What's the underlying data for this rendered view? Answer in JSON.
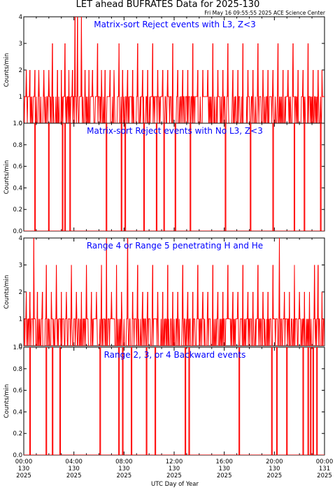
{
  "title": "LET ahead BUFRATES Data for 2025-130",
  "timestamp": "Fri May 16 09:55:55 2025 ACE Science Center",
  "xlabel": "UTC Day of Year",
  "x_ticks": [
    {
      "time": "00:00",
      "doy": "130",
      "year": "2025"
    },
    {
      "time": "04:00",
      "doy": "130",
      "year": "2025"
    },
    {
      "time": "08:00",
      "doy": "130",
      "year": "2025"
    },
    {
      "time": "12:00",
      "doy": "130",
      "year": "2025"
    },
    {
      "time": "16:00",
      "doy": "130",
      "year": "2025"
    },
    {
      "time": "20:00",
      "doy": "130",
      "year": "2025"
    },
    {
      "time": "00:00",
      "doy": "131",
      "year": "2025"
    }
  ],
  "colors": {
    "line": "#ff0000",
    "label": "#0000ff",
    "axis": "#000000",
    "background": "#ffffff"
  },
  "chart_data": [
    {
      "type": "line",
      "label": "Matrix-sort Reject events with L3, Z<3",
      "ylabel": "Counts/min",
      "xlim": [
        0,
        24
      ],
      "ylim": [
        0,
        4
      ],
      "yticks": [
        "0",
        "1",
        "2",
        "3",
        "4"
      ],
      "series": [
        {
          "pattern": "baseline_spikes",
          "baseline_values": [
            0,
            1
          ],
          "spikes": [
            {
              "x": 0.2,
              "y": 2
            },
            {
              "x": 0.5,
              "y": 2
            },
            {
              "x": 0.9,
              "y": 2
            },
            {
              "x": 1.2,
              "y": 2
            },
            {
              "x": 1.6,
              "y": 2
            },
            {
              "x": 2.0,
              "y": 2
            },
            {
              "x": 2.3,
              "y": 3
            },
            {
              "x": 2.7,
              "y": 2
            },
            {
              "x": 3.0,
              "y": 2
            },
            {
              "x": 3.3,
              "y": 3
            },
            {
              "x": 3.6,
              "y": 2
            },
            {
              "x": 3.9,
              "y": 2
            },
            {
              "x": 4.1,
              "y": 4
            },
            {
              "x": 4.3,
              "y": 4
            },
            {
              "x": 4.6,
              "y": 4
            },
            {
              "x": 4.9,
              "y": 2
            },
            {
              "x": 5.2,
              "y": 2
            },
            {
              "x": 5.5,
              "y": 2
            },
            {
              "x": 5.9,
              "y": 3
            },
            {
              "x": 6.2,
              "y": 2
            },
            {
              "x": 6.5,
              "y": 2
            },
            {
              "x": 6.9,
              "y": 2
            },
            {
              "x": 7.2,
              "y": 2
            },
            {
              "x": 7.6,
              "y": 3
            },
            {
              "x": 7.9,
              "y": 2
            },
            {
              "x": 8.3,
              "y": 2
            },
            {
              "x": 8.7,
              "y": 2
            },
            {
              "x": 9.1,
              "y": 3
            },
            {
              "x": 9.5,
              "y": 2
            },
            {
              "x": 9.9,
              "y": 2
            },
            {
              "x": 10.3,
              "y": 3
            },
            {
              "x": 10.7,
              "y": 2
            },
            {
              "x": 11.1,
              "y": 2
            },
            {
              "x": 11.5,
              "y": 2
            },
            {
              "x": 11.9,
              "y": 3
            },
            {
              "x": 12.3,
              "y": 2
            },
            {
              "x": 12.7,
              "y": 2
            },
            {
              "x": 13.1,
              "y": 2
            },
            {
              "x": 13.5,
              "y": 3
            },
            {
              "x": 13.9,
              "y": 2
            },
            {
              "x": 14.3,
              "y": 2
            },
            {
              "x": 14.7,
              "y": 2
            },
            {
              "x": 15.1,
              "y": 3
            },
            {
              "x": 15.5,
              "y": 2
            },
            {
              "x": 15.9,
              "y": 2
            },
            {
              "x": 16.3,
              "y": 3
            },
            {
              "x": 16.7,
              "y": 2
            },
            {
              "x": 17.1,
              "y": 2
            },
            {
              "x": 17.5,
              "y": 3
            },
            {
              "x": 17.9,
              "y": 2
            },
            {
              "x": 18.3,
              "y": 2
            },
            {
              "x": 18.7,
              "y": 3
            },
            {
              "x": 19.1,
              "y": 2
            },
            {
              "x": 19.5,
              "y": 2
            },
            {
              "x": 19.9,
              "y": 2
            },
            {
              "x": 20.3,
              "y": 3
            },
            {
              "x": 20.7,
              "y": 2
            },
            {
              "x": 21.1,
              "y": 2
            },
            {
              "x": 21.5,
              "y": 3
            },
            {
              "x": 21.9,
              "y": 2
            },
            {
              "x": 22.3,
              "y": 2
            },
            {
              "x": 22.7,
              "y": 3
            },
            {
              "x": 23.1,
              "y": 2
            },
            {
              "x": 23.5,
              "y": 2
            },
            {
              "x": 23.8,
              "y": 2
            }
          ]
        }
      ]
    },
    {
      "type": "line",
      "label": "Matrix-sort Reject events with No L3, Z<3",
      "ylabel": "Counts/min",
      "xlim": [
        0,
        24
      ],
      "ylim": [
        0,
        1
      ],
      "yticks": [
        "0.0",
        "0.2",
        "0.4",
        "0.6",
        "0.8",
        "1.0"
      ],
      "series": [
        {
          "pattern": "sparse_spikes",
          "spikes": [
            {
              "x": 0.9,
              "y": 1
            },
            {
              "x": 2.0,
              "y": 1
            },
            {
              "x": 3.1,
              "y": 1
            },
            {
              "x": 3.3,
              "y": 1
            },
            {
              "x": 3.7,
              "y": 1
            },
            {
              "x": 6.6,
              "y": 1
            },
            {
              "x": 7.8,
              "y": 1
            },
            {
              "x": 8.1,
              "y": 1
            },
            {
              "x": 9.6,
              "y": 1
            },
            {
              "x": 10.6,
              "y": 1
            },
            {
              "x": 11.2,
              "y": 1
            },
            {
              "x": 12.1,
              "y": 1
            },
            {
              "x": 13.3,
              "y": 1
            },
            {
              "x": 16.1,
              "y": 1
            },
            {
              "x": 18.1,
              "y": 1
            },
            {
              "x": 19.9,
              "y": 1
            },
            {
              "x": 21.6,
              "y": 1
            },
            {
              "x": 22.4,
              "y": 1
            },
            {
              "x": 23.7,
              "y": 1
            }
          ]
        }
      ]
    },
    {
      "type": "line",
      "label": "Range 4 or Range 5 penetrating H and He",
      "ylabel": "Counts/min",
      "xlim": [
        0,
        24
      ],
      "ylim": [
        0,
        4
      ],
      "yticks": [
        "0",
        "1",
        "2",
        "3",
        "4"
      ],
      "series": [
        {
          "pattern": "baseline_spikes",
          "baseline_values": [
            0,
            1
          ],
          "spikes": [
            {
              "x": 0.2,
              "y": 2
            },
            {
              "x": 0.5,
              "y": 2
            },
            {
              "x": 0.8,
              "y": 4
            },
            {
              "x": 1.1,
              "y": 2
            },
            {
              "x": 1.5,
              "y": 2
            },
            {
              "x": 1.8,
              "y": 3
            },
            {
              "x": 2.2,
              "y": 2
            },
            {
              "x": 2.6,
              "y": 3
            },
            {
              "x": 3.0,
              "y": 2
            },
            {
              "x": 3.4,
              "y": 2
            },
            {
              "x": 3.8,
              "y": 3
            },
            {
              "x": 4.2,
              "y": 2
            },
            {
              "x": 4.6,
              "y": 2
            },
            {
              "x": 5.0,
              "y": 3
            },
            {
              "x": 5.4,
              "y": 2
            },
            {
              "x": 5.8,
              "y": 2
            },
            {
              "x": 6.2,
              "y": 3
            },
            {
              "x": 6.6,
              "y": 4
            },
            {
              "x": 7.0,
              "y": 2
            },
            {
              "x": 7.4,
              "y": 3
            },
            {
              "x": 7.8,
              "y": 2
            },
            {
              "x": 8.3,
              "y": 4
            },
            {
              "x": 8.7,
              "y": 2
            },
            {
              "x": 9.1,
              "y": 3
            },
            {
              "x": 9.5,
              "y": 2
            },
            {
              "x": 9.9,
              "y": 2
            },
            {
              "x": 10.3,
              "y": 3
            },
            {
              "x": 10.7,
              "y": 2
            },
            {
              "x": 11.1,
              "y": 2
            },
            {
              "x": 11.5,
              "y": 3
            },
            {
              "x": 11.9,
              "y": 2
            },
            {
              "x": 12.3,
              "y": 2
            },
            {
              "x": 12.7,
              "y": 3
            },
            {
              "x": 13.1,
              "y": 2
            },
            {
              "x": 13.5,
              "y": 2
            },
            {
              "x": 13.9,
              "y": 3
            },
            {
              "x": 14.3,
              "y": 2
            },
            {
              "x": 14.7,
              "y": 2
            },
            {
              "x": 15.1,
              "y": 3
            },
            {
              "x": 15.5,
              "y": 2
            },
            {
              "x": 15.9,
              "y": 2
            },
            {
              "x": 16.3,
              "y": 3
            },
            {
              "x": 16.7,
              "y": 2
            },
            {
              "x": 17.1,
              "y": 2
            },
            {
              "x": 17.5,
              "y": 3
            },
            {
              "x": 17.9,
              "y": 2
            },
            {
              "x": 18.3,
              "y": 2
            },
            {
              "x": 18.7,
              "y": 3
            },
            {
              "x": 19.1,
              "y": 2
            },
            {
              "x": 19.5,
              "y": 2
            },
            {
              "x": 19.9,
              "y": 3
            },
            {
              "x": 20.4,
              "y": 4
            },
            {
              "x": 20.8,
              "y": 2
            },
            {
              "x": 21.2,
              "y": 2
            },
            {
              "x": 21.6,
              "y": 3
            },
            {
              "x": 22.0,
              "y": 2
            },
            {
              "x": 22.4,
              "y": 2
            },
            {
              "x": 22.8,
              "y": 2
            },
            {
              "x": 23.2,
              "y": 3
            },
            {
              "x": 23.5,
              "y": 3
            },
            {
              "x": 23.8,
              "y": 2
            }
          ]
        }
      ]
    },
    {
      "type": "line",
      "label": "Range 2, 3, or 4 Backward events",
      "ylabel": "Counts/min",
      "xlim": [
        0,
        24
      ],
      "ylim": [
        0,
        1
      ],
      "yticks": [
        "0.0",
        "0.2",
        "0.4",
        "0.6",
        "0.8",
        "1.0"
      ],
      "series": [
        {
          "pattern": "sparse_spikes",
          "spikes": [
            {
              "x": 0.5,
              "y": 1
            },
            {
              "x": 1.8,
              "y": 1
            },
            {
              "x": 2.3,
              "y": 1
            },
            {
              "x": 2.9,
              "y": 1
            },
            {
              "x": 6.1,
              "y": 1
            },
            {
              "x": 7.6,
              "y": 1
            },
            {
              "x": 7.9,
              "y": 1
            },
            {
              "x": 8.6,
              "y": 1
            },
            {
              "x": 9.8,
              "y": 1
            },
            {
              "x": 10.5,
              "y": 1
            },
            {
              "x": 12.9,
              "y": 1
            },
            {
              "x": 13.2,
              "y": 1
            },
            {
              "x": 17.2,
              "y": 1
            },
            {
              "x": 19.8,
              "y": 1
            },
            {
              "x": 20.2,
              "y": 1
            },
            {
              "x": 21.0,
              "y": 1
            },
            {
              "x": 22.3,
              "y": 1
            },
            {
              "x": 22.7,
              "y": 1
            },
            {
              "x": 22.9,
              "y": 1
            },
            {
              "x": 23.1,
              "y": 1
            },
            {
              "x": 23.4,
              "y": 1
            }
          ]
        }
      ]
    }
  ]
}
